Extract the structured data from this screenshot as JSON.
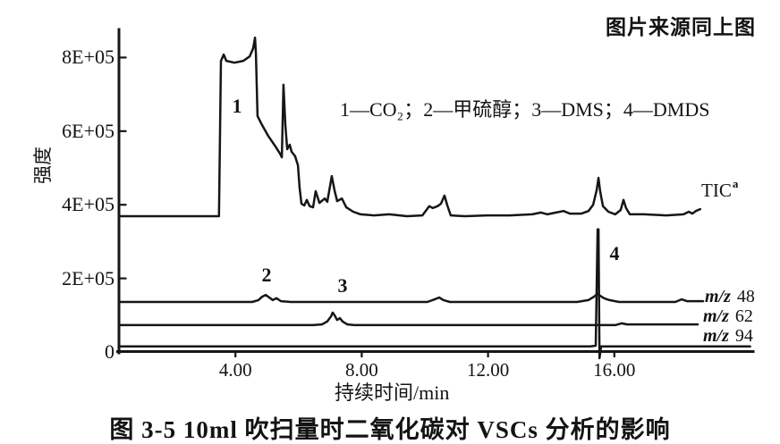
{
  "header": {
    "source_note": "图片来源同上图"
  },
  "figure": {
    "caption": "图 3-5  10ml 吹扫量时二氧化碳对 VSCs 分析的影响",
    "legend": "1—CO₂；2—甲硫醇；3—DMS；4—DMDS"
  },
  "chart_data": {
    "type": "line",
    "title": "图 3-5 10ml 吹扫量时二氧化碳对 VSCs 分析的影响",
    "xlabel": "持续时间/min",
    "ylabel": "强度",
    "xlim": [
      0.3,
      20.3
    ],
    "ylim": [
      0,
      880000
    ],
    "grid": false,
    "legend_text": "1—CO₂；2—甲硫醇；3—DMS；4—DMDS",
    "legend_entries": [
      {
        "peak": "1",
        "compound": "CO₂"
      },
      {
        "peak": "2",
        "compound": "甲硫醇"
      },
      {
        "peak": "3",
        "compound": "DMS"
      },
      {
        "peak": "4",
        "compound": "DMDS"
      }
    ],
    "x_ticks": [
      {
        "value": 4,
        "label": "4.00"
      },
      {
        "value": 8,
        "label": "8.00"
      },
      {
        "value": 12,
        "label": "12.00"
      },
      {
        "value": 16,
        "label": "16.00"
      }
    ],
    "y_ticks": [
      {
        "value": 800000,
        "label": "8E+05"
      },
      {
        "value": 600000,
        "label": "6E+05"
      },
      {
        "value": 400000,
        "label": "4E+05"
      },
      {
        "value": 200000,
        "label": "2E+05"
      },
      {
        "value": 0,
        "label": "0"
      }
    ],
    "peak_annotations": [
      {
        "label": "1",
        "compound": "CO₂",
        "t": 4.05,
        "intensity": 663000
      },
      {
        "label": "2",
        "compound": "甲硫醇",
        "t": 4.99,
        "intensity": 206000
      },
      {
        "label": "3",
        "compound": "DMS",
        "t": 7.39,
        "intensity": 177000
      },
      {
        "label": "4",
        "compound": "DMDS",
        "t": 16.0,
        "intensity": 262000
      }
    ],
    "series": [
      {
        "id": "tic",
        "name": "TIC",
        "label": "TIC",
        "label_superscript": "a",
        "points": [
          [
            0.31,
            369000
          ],
          [
            3.48,
            369000
          ],
          [
            3.54,
            791000
          ],
          [
            3.63,
            808000
          ],
          [
            3.71,
            791000
          ],
          [
            3.97,
            786000
          ],
          [
            4.25,
            791000
          ],
          [
            4.45,
            803000
          ],
          [
            4.56,
            825000
          ],
          [
            4.62,
            854000
          ],
          [
            4.65,
            811000
          ],
          [
            4.7,
            641000
          ],
          [
            4.84,
            617000
          ],
          [
            5.04,
            587000
          ],
          [
            5.27,
            558000
          ],
          [
            5.41,
            539000
          ],
          [
            5.47,
            529000
          ],
          [
            5.52,
            726000
          ],
          [
            5.58,
            617000
          ],
          [
            5.64,
            551000
          ],
          [
            5.72,
            563000
          ],
          [
            5.78,
            544000
          ],
          [
            5.89,
            532000
          ],
          [
            5.98,
            507000
          ],
          [
            6.03,
            447000
          ],
          [
            6.09,
            403000
          ],
          [
            6.18,
            398000
          ],
          [
            6.26,
            413000
          ],
          [
            6.35,
            396000
          ],
          [
            6.46,
            393000
          ],
          [
            6.54,
            437000
          ],
          [
            6.66,
            405000
          ],
          [
            6.83,
            417000
          ],
          [
            6.91,
            408000
          ],
          [
            7.05,
            478000
          ],
          [
            7.14,
            439000
          ],
          [
            7.22,
            410000
          ],
          [
            7.37,
            417000
          ],
          [
            7.51,
            393000
          ],
          [
            7.73,
            381000
          ],
          [
            7.96,
            374000
          ],
          [
            8.39,
            371000
          ],
          [
            8.87,
            374000
          ],
          [
            9.43,
            369000
          ],
          [
            9.92,
            371000
          ],
          [
            10.14,
            396000
          ],
          [
            10.25,
            391000
          ],
          [
            10.4,
            396000
          ],
          [
            10.51,
            403000
          ],
          [
            10.62,
            425000
          ],
          [
            10.71,
            398000
          ],
          [
            10.82,
            371000
          ],
          [
            11.27,
            369000
          ],
          [
            11.98,
            371000
          ],
          [
            12.69,
            371000
          ],
          [
            13.4,
            374000
          ],
          [
            13.68,
            379000
          ],
          [
            13.88,
            374000
          ],
          [
            14.16,
            379000
          ],
          [
            14.39,
            383000
          ],
          [
            14.59,
            376000
          ],
          [
            14.96,
            376000
          ],
          [
            15.18,
            383000
          ],
          [
            15.33,
            400000
          ],
          [
            15.44,
            439000
          ],
          [
            15.5,
            473000
          ],
          [
            15.55,
            437000
          ],
          [
            15.64,
            396000
          ],
          [
            15.81,
            381000
          ],
          [
            16.03,
            374000
          ],
          [
            16.2,
            386000
          ],
          [
            16.29,
            413000
          ],
          [
            16.37,
            391000
          ],
          [
            16.49,
            374000
          ],
          [
            16.94,
            374000
          ],
          [
            17.65,
            371000
          ],
          [
            18.19,
            374000
          ],
          [
            18.36,
            381000
          ],
          [
            18.47,
            376000
          ],
          [
            18.58,
            383000
          ],
          [
            18.72,
            388000
          ]
        ]
      },
      {
        "id": "mz48",
        "name": "m/z 48",
        "label_prefix": "m/z",
        "label_value": "48",
        "points": [
          [
            0.31,
            136000
          ],
          [
            4.53,
            136000
          ],
          [
            4.73,
            141000
          ],
          [
            4.84,
            150000
          ],
          [
            4.96,
            155000
          ],
          [
            5.07,
            148000
          ],
          [
            5.18,
            141000
          ],
          [
            5.3,
            146000
          ],
          [
            5.44,
            138000
          ],
          [
            5.75,
            136000
          ],
          [
            10.08,
            136000
          ],
          [
            10.31,
            143000
          ],
          [
            10.45,
            148000
          ],
          [
            10.59,
            141000
          ],
          [
            10.79,
            136000
          ],
          [
            14.82,
            136000
          ],
          [
            15.18,
            141000
          ],
          [
            15.35,
            150000
          ],
          [
            15.47,
            158000
          ],
          [
            15.55,
            153000
          ],
          [
            15.67,
            146000
          ],
          [
            15.84,
            141000
          ],
          [
            16.15,
            136000
          ],
          [
            17.93,
            136000
          ],
          [
            18.13,
            143000
          ],
          [
            18.3,
            138000
          ],
          [
            18.81,
            138000
          ]
        ]
      },
      {
        "id": "mz62",
        "name": "m/z 62",
        "label_prefix": "m/z",
        "label_value": "62",
        "points": [
          [
            0.31,
            73000
          ],
          [
            6.46,
            73000
          ],
          [
            6.74,
            75000
          ],
          [
            6.91,
            83000
          ],
          [
            7.03,
            97000
          ],
          [
            7.08,
            107000
          ],
          [
            7.14,
            100000
          ],
          [
            7.22,
            87000
          ],
          [
            7.31,
            92000
          ],
          [
            7.39,
            83000
          ],
          [
            7.54,
            75000
          ],
          [
            7.76,
            73000
          ],
          [
            12.41,
            73000
          ],
          [
            16.03,
            73000
          ],
          [
            16.23,
            78000
          ],
          [
            16.4,
            75000
          ],
          [
            18.64,
            75000
          ]
        ]
      },
      {
        "id": "mz94",
        "name": "m/z 94",
        "label_prefix": "m/z",
        "label_value": "94",
        "points": [
          [
            0.31,
            15000
          ],
          [
            15.24,
            15000
          ],
          [
            15.41,
            17000
          ],
          [
            15.47,
            333000
          ],
          [
            15.5,
            333000
          ],
          [
            15.53,
            -17000
          ],
          [
            15.58,
            15000
          ],
          [
            20.3,
            15000
          ]
        ]
      }
    ]
  }
}
